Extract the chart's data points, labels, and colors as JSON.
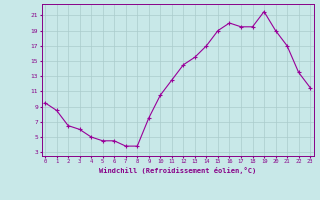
{
  "x": [
    0,
    1,
    2,
    3,
    4,
    5,
    6,
    7,
    8,
    9,
    10,
    11,
    12,
    13,
    14,
    15,
    16,
    17,
    18,
    19,
    20,
    21,
    22,
    23
  ],
  "y": [
    9.5,
    8.5,
    6.5,
    6.0,
    5.0,
    4.5,
    4.5,
    3.8,
    3.8,
    7.5,
    10.5,
    12.5,
    14.5,
    15.5,
    17.0,
    19.0,
    20.0,
    19.5,
    19.5,
    21.5,
    19.0,
    17.0,
    13.5,
    11.5
  ],
  "line_color": "#990099",
  "marker": "+",
  "marker_size": 3,
  "marker_lw": 0.8,
  "bg_color": "#c8e8e8",
  "grid_color": "#aacccc",
  "xlabel": "Windchill (Refroidissement éolien,°C)",
  "xlabel_color": "#880088",
  "tick_color": "#880088",
  "yticks": [
    3,
    5,
    7,
    9,
    11,
    13,
    15,
    17,
    19,
    21
  ],
  "xticks": [
    0,
    1,
    2,
    3,
    4,
    5,
    6,
    7,
    8,
    9,
    10,
    11,
    12,
    13,
    14,
    15,
    16,
    17,
    18,
    19,
    20,
    21,
    22,
    23
  ],
  "ylim": [
    2.5,
    22.5
  ],
  "xlim": [
    -0.3,
    23.3
  ]
}
